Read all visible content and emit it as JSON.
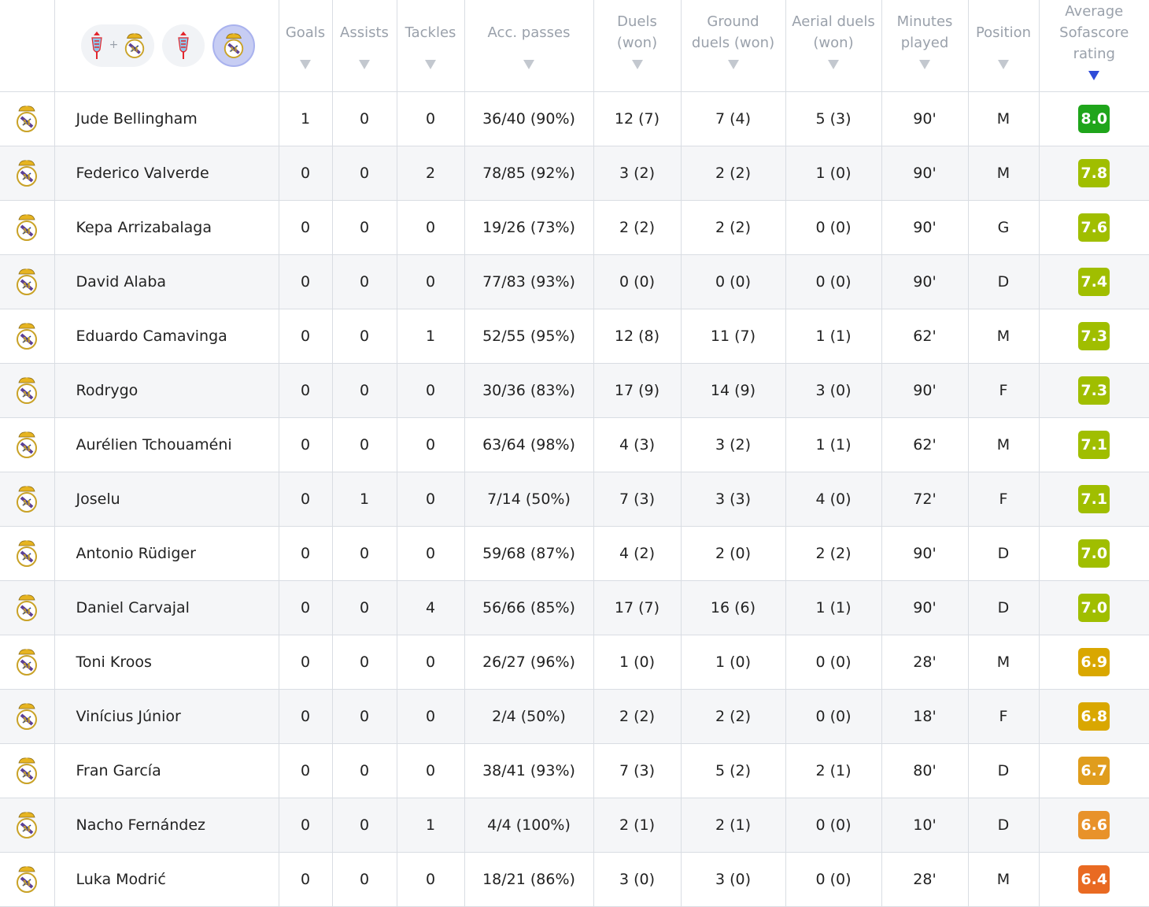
{
  "header": {
    "columns": [
      {
        "key": "goals",
        "label": "Goals"
      },
      {
        "key": "assists",
        "label": "Assists"
      },
      {
        "key": "tackles",
        "label": "Tackles"
      },
      {
        "key": "passes",
        "label": "Acc. passes"
      },
      {
        "key": "duels",
        "label": "Duels (won)"
      },
      {
        "key": "ground",
        "label": "Ground duels (won)"
      },
      {
        "key": "aerial",
        "label": "Aerial duels (won)"
      },
      {
        "key": "minutes",
        "label": "Minutes played"
      },
      {
        "key": "position",
        "label": "Position"
      },
      {
        "key": "rating",
        "label": "Average Sofascore rating"
      }
    ],
    "filters": {
      "combined_plus": "+",
      "home_team_icon": "celta-vigo-crest-icon",
      "away_team_icon": "real-madrid-crest-icon",
      "active": "away"
    },
    "sort": {
      "column": "rating",
      "direction": "desc"
    }
  },
  "colors": {
    "rating_green_dark": "#1fa51b",
    "rating_green_light": "#a0be00",
    "rating_yellow": "#d9a700",
    "rating_orange": "#e8922a",
    "rating_orange_dark": "#e96a22",
    "active_filter": "#c7cdf3",
    "sort_active": "#2f4bd8"
  },
  "players": [
    {
      "name": "Jude Bellingham",
      "goals": "1",
      "assists": "0",
      "tackles": "0",
      "passes": "36/40 (90%)",
      "duels": "12 (7)",
      "ground": "7 (4)",
      "aerial": "5 (3)",
      "minutes": "90'",
      "position": "M",
      "rating": "8.0",
      "rating_color": "#1fa51b"
    },
    {
      "name": "Federico Valverde",
      "goals": "0",
      "assists": "0",
      "tackles": "2",
      "passes": "78/85 (92%)",
      "duels": "3 (2)",
      "ground": "2 (2)",
      "aerial": "1 (0)",
      "minutes": "90'",
      "position": "M",
      "rating": "7.8",
      "rating_color": "#a0be00"
    },
    {
      "name": "Kepa Arrizabalaga",
      "goals": "0",
      "assists": "0",
      "tackles": "0",
      "passes": "19/26 (73%)",
      "duels": "2 (2)",
      "ground": "2 (2)",
      "aerial": "0 (0)",
      "minutes": "90'",
      "position": "G",
      "rating": "7.6",
      "rating_color": "#a0be00"
    },
    {
      "name": "David Alaba",
      "goals": "0",
      "assists": "0",
      "tackles": "0",
      "passes": "77/83 (93%)",
      "duels": "0 (0)",
      "ground": "0 (0)",
      "aerial": "0 (0)",
      "minutes": "90'",
      "position": "D",
      "rating": "7.4",
      "rating_color": "#a0be00"
    },
    {
      "name": "Eduardo Camavinga",
      "goals": "0",
      "assists": "0",
      "tackles": "1",
      "passes": "52/55 (95%)",
      "duels": "12 (8)",
      "ground": "11 (7)",
      "aerial": "1 (1)",
      "minutes": "62'",
      "position": "M",
      "rating": "7.3",
      "rating_color": "#a0be00"
    },
    {
      "name": "Rodrygo",
      "goals": "0",
      "assists": "0",
      "tackles": "0",
      "passes": "30/36 (83%)",
      "duels": "17 (9)",
      "ground": "14 (9)",
      "aerial": "3 (0)",
      "minutes": "90'",
      "position": "F",
      "rating": "7.3",
      "rating_color": "#a0be00"
    },
    {
      "name": "Aurélien Tchouaméni",
      "goals": "0",
      "assists": "0",
      "tackles": "0",
      "passes": "63/64 (98%)",
      "duels": "4 (3)",
      "ground": "3 (2)",
      "aerial": "1 (1)",
      "minutes": "62'",
      "position": "M",
      "rating": "7.1",
      "rating_color": "#a0be00"
    },
    {
      "name": "Joselu",
      "goals": "0",
      "assists": "1",
      "tackles": "0",
      "passes": "7/14 (50%)",
      "duels": "7 (3)",
      "ground": "3 (3)",
      "aerial": "4 (0)",
      "minutes": "72'",
      "position": "F",
      "rating": "7.1",
      "rating_color": "#a0be00"
    },
    {
      "name": "Antonio Rüdiger",
      "goals": "0",
      "assists": "0",
      "tackles": "0",
      "passes": "59/68 (87%)",
      "duels": "4 (2)",
      "ground": "2 (0)",
      "aerial": "2 (2)",
      "minutes": "90'",
      "position": "D",
      "rating": "7.0",
      "rating_color": "#a0be00"
    },
    {
      "name": "Daniel Carvajal",
      "goals": "0",
      "assists": "0",
      "tackles": "4",
      "passes": "56/66 (85%)",
      "duels": "17 (7)",
      "ground": "16 (6)",
      "aerial": "1 (1)",
      "minutes": "90'",
      "position": "D",
      "rating": "7.0",
      "rating_color": "#a0be00"
    },
    {
      "name": "Toni Kroos",
      "goals": "0",
      "assists": "0",
      "tackles": "0",
      "passes": "26/27 (96%)",
      "duels": "1 (0)",
      "ground": "1 (0)",
      "aerial": "0 (0)",
      "minutes": "28'",
      "position": "M",
      "rating": "6.9",
      "rating_color": "#d9a700"
    },
    {
      "name": "Vinícius Júnior",
      "goals": "0",
      "assists": "0",
      "tackles": "0",
      "passes": "2/4 (50%)",
      "duels": "2 (2)",
      "ground": "2 (2)",
      "aerial": "0 (0)",
      "minutes": "18'",
      "position": "F",
      "rating": "6.8",
      "rating_color": "#d9a700"
    },
    {
      "name": "Fran García",
      "goals": "0",
      "assists": "0",
      "tackles": "0",
      "passes": "38/41 (93%)",
      "duels": "7 (3)",
      "ground": "5 (2)",
      "aerial": "2 (1)",
      "minutes": "80'",
      "position": "D",
      "rating": "6.7",
      "rating_color": "#e09d1d"
    },
    {
      "name": "Nacho Fernández",
      "goals": "0",
      "assists": "0",
      "tackles": "1",
      "passes": "4/4 (100%)",
      "duels": "2 (1)",
      "ground": "2 (1)",
      "aerial": "0 (0)",
      "minutes": "10'",
      "position": "D",
      "rating": "6.6",
      "rating_color": "#e8922a"
    },
    {
      "name": "Luka Modrić",
      "goals": "0",
      "assists": "0",
      "tackles": "0",
      "passes": "18/21 (86%)",
      "duels": "3 (0)",
      "ground": "3 (0)",
      "aerial": "0 (0)",
      "minutes": "28'",
      "position": "M",
      "rating": "6.4",
      "rating_color": "#e96a22"
    }
  ]
}
